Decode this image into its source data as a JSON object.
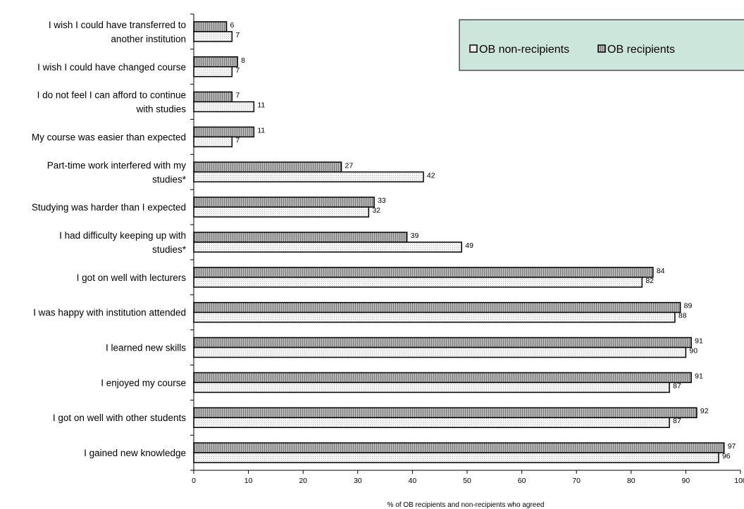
{
  "chart_data": {
    "type": "bar",
    "orientation": "horizontal",
    "categories": [
      [
        "I wish I could have transferred to",
        "another institution"
      ],
      [
        "I wish I could have changed course"
      ],
      [
        "I do not feel I can afford to continue",
        "with studies"
      ],
      [
        "My course was easier than expected"
      ],
      [
        "Part-time work interfered with my",
        "studies*"
      ],
      [
        "Studying was harder than I expected"
      ],
      [
        "I had difficulty keeping up with",
        "studies*"
      ],
      [
        "I got on well with lecturers"
      ],
      [
        "I was happy with institution attended"
      ],
      [
        "I learned new skills"
      ],
      [
        "I enjoyed my course"
      ],
      [
        "I got on well with other students"
      ],
      [
        "I gained new knowledge"
      ]
    ],
    "series": [
      {
        "name": "OB recipients",
        "values": [
          6,
          8,
          7,
          11,
          27,
          33,
          39,
          84,
          89,
          91,
          91,
          92,
          97
        ]
      },
      {
        "name": "OB non-recipients",
        "values": [
          7,
          7,
          11,
          7,
          42,
          32,
          49,
          82,
          88,
          90,
          87,
          87,
          96
        ]
      }
    ],
    "xlabel": "% of OB recipients and non-recipients who agreed",
    "xlim": [
      0,
      100
    ],
    "xticks": [
      0,
      10,
      20,
      30,
      40,
      50,
      60,
      70,
      80,
      90,
      100
    ],
    "legend": {
      "position": "top-right",
      "order": [
        "OB non-recipients",
        "OB recipients"
      ],
      "background": "#cce6dc"
    },
    "colors": {
      "recipients": "#a6a6a6",
      "non_recipients": "#f2f2f2",
      "bar_stroke": "#000000"
    },
    "grid": false
  }
}
